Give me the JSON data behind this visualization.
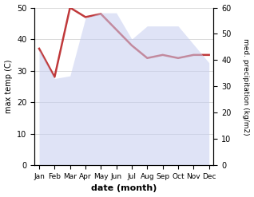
{
  "months": [
    "Jan",
    "Feb",
    "Mar",
    "Apr",
    "May",
    "Jun",
    "Jul",
    "Aug",
    "Sep",
    "Oct",
    "Nov",
    "Dec"
  ],
  "temperature": [
    37,
    28,
    50,
    47,
    48,
    43,
    38,
    34,
    35,
    34,
    35,
    35
  ],
  "precipitation": [
    44,
    33,
    34,
    56,
    58,
    58,
    48,
    53,
    53,
    53,
    46,
    39
  ],
  "temp_color": "#c0393b",
  "precip_fill_color": "#c5cdf0",
  "xlabel": "date (month)",
  "ylabel_left": "max temp (C)",
  "ylabel_right": "med. precipitation (kg/m2)",
  "ylim_left": [
    0,
    50
  ],
  "ylim_right": [
    0,
    60
  ],
  "yticks_left": [
    0,
    10,
    20,
    30,
    40,
    50
  ],
  "yticks_right": [
    0,
    10,
    20,
    30,
    40,
    50,
    60
  ],
  "background_color": "#f0f0f8"
}
